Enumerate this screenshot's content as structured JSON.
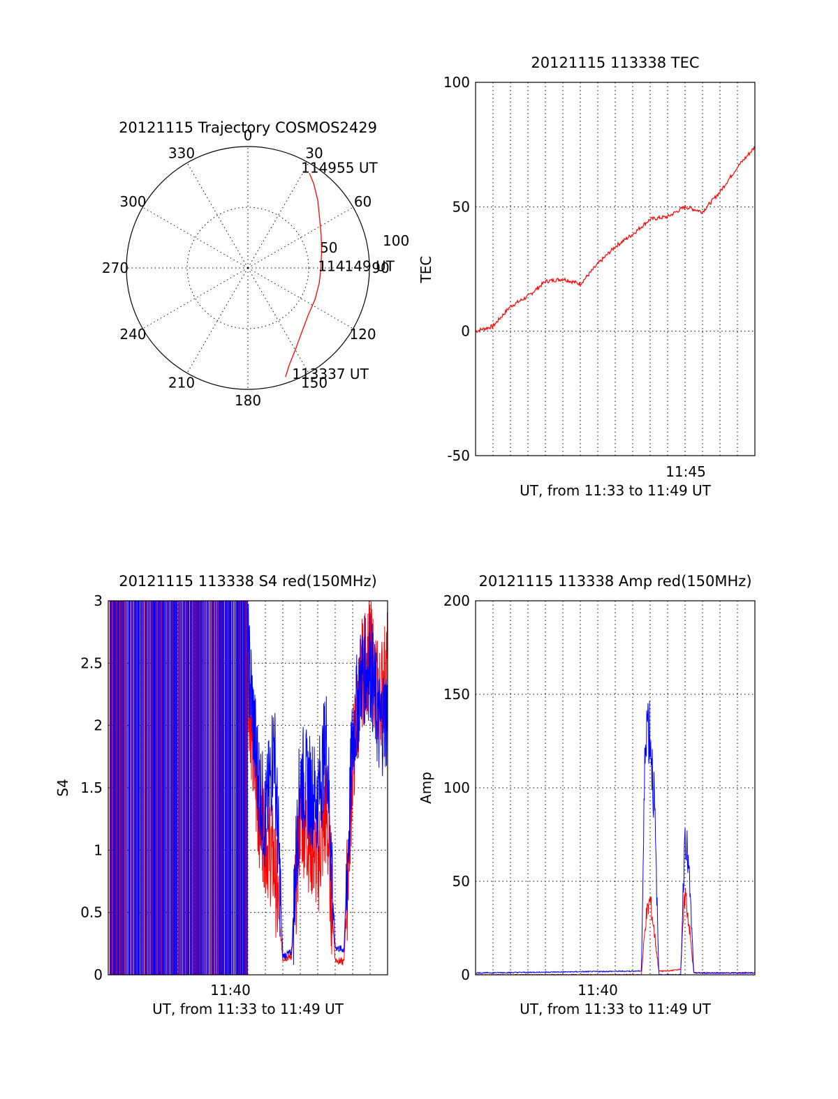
{
  "chart_data": [
    {
      "type": "polar",
      "title": "20121115 Trajectory COSMOS2429",
      "radial_range": [
        0,
        100
      ],
      "radial_tick_labels": [
        "50",
        "100"
      ],
      "angle_tick_labels": [
        "0",
        "30",
        "60",
        "90",
        "120",
        "150",
        "180",
        "210",
        "240",
        "270",
        "300",
        "330"
      ],
      "angle_ticks": [
        0,
        30,
        60,
        90,
        120,
        150,
        180,
        210,
        240,
        270,
        300,
        330
      ],
      "series": [
        {
          "color": "#ff0000",
          "points": [
            {
              "az": 161,
              "r": 95
            },
            {
              "az": 157,
              "r": 87
            },
            {
              "az": 150,
              "r": 78
            },
            {
              "az": 140,
              "r": 69
            },
            {
              "az": 128,
              "r": 63
            },
            {
              "az": 115,
              "r": 61
            },
            {
              "az": 102,
              "r": 60
            },
            {
              "az": 91,
              "r": 60
            },
            {
              "az": 78,
              "r": 62
            },
            {
              "az": 66,
              "r": 66
            },
            {
              "az": 55,
              "r": 72
            },
            {
              "az": 46,
              "r": 80
            },
            {
              "az": 38,
              "r": 88
            },
            {
              "az": 33,
              "r": 93
            }
          ]
        }
      ],
      "annotations": [
        {
          "text": "114955 UT",
          "az": 29,
          "r": 95
        },
        {
          "text": "114149 UT",
          "az": 88,
          "r": 60
        },
        {
          "text": "113337 UT",
          "az": 156,
          "r": 95
        }
      ]
    },
    {
      "type": "line",
      "title": "20121115 113338 TEC",
      "xlabel": "UT, from 11:33 to 11:49 UT",
      "ylabel": "TEC",
      "ylim": [
        -50,
        100
      ],
      "xlim": [
        "11:33",
        "11:49"
      ],
      "y_tick_labels": [
        "-50",
        "0",
        "50",
        "100"
      ],
      "x_tick_labels": [
        "11:45"
      ],
      "grid": true,
      "series": [
        {
          "color": "#ff0000",
          "x": [
            "11:33",
            "11:34",
            "11:35",
            "11:36",
            "11:37",
            "11:38",
            "11:39",
            "11:40",
            "11:41",
            "11:42",
            "11:43",
            "11:44",
            "11:45",
            "11:46",
            "11:47",
            "11:48",
            "11:49"
          ],
          "values": [
            0,
            2,
            10,
            14,
            20,
            21,
            19,
            27,
            34,
            39,
            45,
            46,
            50,
            48,
            56,
            66,
            74
          ]
        }
      ]
    },
    {
      "type": "line",
      "title": "20121115 113338 S4 red(150MHz)",
      "xlabel": "UT, from 11:33 to 11:49 UT",
      "ylabel": "S4",
      "ylim": [
        0,
        3
      ],
      "xlim": [
        "11:33",
        "11:49"
      ],
      "y_tick_labels": [
        "0",
        "0.5",
        "1",
        "1.5",
        "2",
        "2.5",
        "3"
      ],
      "x_tick_labels": [
        "11:40"
      ],
      "grid": true,
      "series": [
        {
          "color": "#ff0000",
          "x": [
            "11:41",
            "11:41:30",
            "11:42",
            "11:42:30",
            "11:43",
            "11:43:30",
            "11:44",
            "11:44:30",
            "11:45",
            "11:45:30",
            "11:46",
            "11:46:30",
            "11:47",
            "11:47:30",
            "11:48",
            "11:48:30",
            "11:49"
          ],
          "values": [
            2.4,
            1.4,
            1.1,
            0.9,
            0.13,
            0.15,
            1.3,
            1.1,
            0.9,
            1.3,
            0.12,
            0.1,
            1.7,
            2.4,
            2.6,
            2.2,
            2.5
          ]
        },
        {
          "color": "#0000ff",
          "x": [
            "11:41",
            "11:41:30",
            "11:42",
            "11:42:30",
            "11:43",
            "11:43:30",
            "11:44",
            "11:44:30",
            "11:45",
            "11:45:30",
            "11:46",
            "11:46:30",
            "11:47",
            "11:47:30",
            "11:48",
            "11:48:30",
            "11:49"
          ],
          "values": [
            2.6,
            1.7,
            1.2,
            1.9,
            0.15,
            0.18,
            1.6,
            1.5,
            1.4,
            1.9,
            0.22,
            0.2,
            1.9,
            2.4,
            2.5,
            2.0,
            2.1
          ]
        }
      ]
    },
    {
      "type": "line",
      "title": "20121115 113338 Amp red(150MHz)",
      "xlabel": "UT, from 11:33 to 11:49 UT",
      "ylabel": "Amp",
      "ylim": [
        0,
        200
      ],
      "xlim": [
        "11:33",
        "11:49"
      ],
      "y_tick_labels": [
        "0",
        "50",
        "100",
        "150",
        "200"
      ],
      "x_tick_labels": [
        "11:40"
      ],
      "grid": true,
      "series": [
        {
          "color": "#ff0000",
          "x": [
            "11:33",
            "11:42:30",
            "11:42:45",
            "11:43",
            "11:43:15",
            "11:43:30",
            "11:44",
            "11:44:45",
            "11:45",
            "11:45:15",
            "11:45:30",
            "11:49"
          ],
          "values": [
            0,
            0,
            30,
            40,
            22,
            2,
            2,
            3,
            45,
            25,
            1,
            1
          ]
        },
        {
          "color": "#0000ff",
          "x": [
            "11:33",
            "11:42:30",
            "11:42:45",
            "11:43",
            "11:43:15",
            "11:43:30",
            "11:44",
            "11:44:45",
            "11:45",
            "11:45:15",
            "11:45:30",
            "11:49"
          ],
          "values": [
            1,
            2,
            140,
            130,
            90,
            0,
            0,
            0,
            80,
            50,
            1,
            1
          ]
        }
      ]
    }
  ]
}
